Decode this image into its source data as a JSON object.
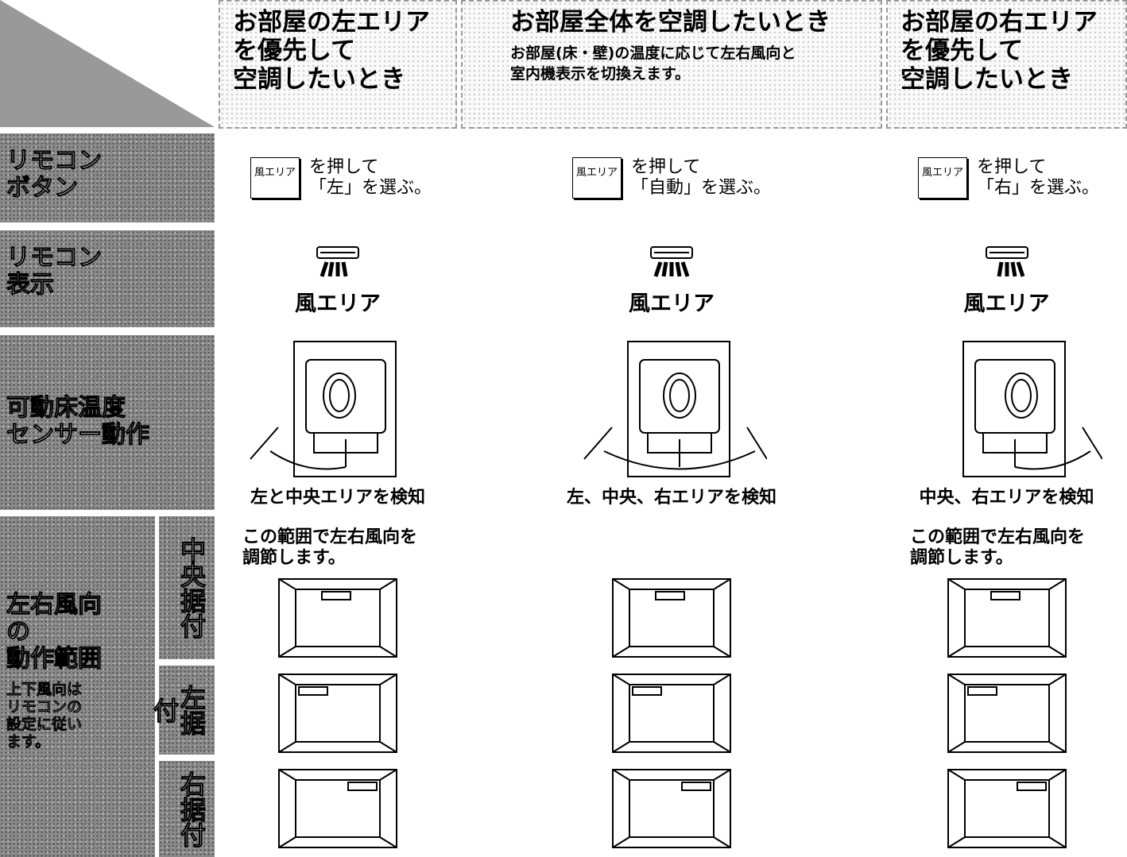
{
  "row_labels": {
    "remote_button": [
      "リモコン",
      "ボタン"
    ],
    "remote_display": [
      "リモコン",
      "表示"
    ],
    "sensor": [
      "可動床温度",
      "センサー動作"
    ],
    "airflow": [
      "左右風向",
      "の",
      "動作範囲"
    ],
    "airflow_note": [
      "上下風向は",
      "リモコンの",
      "設定に従い",
      "ます。"
    ],
    "installations": [
      "中央据付",
      "左据付",
      "右据付"
    ]
  },
  "columns": [
    {
      "title": [
        "お部屋の左エリア",
        "を優先して",
        "空調したいとき"
      ],
      "button": "風エリア",
      "instruction": [
        "を押して",
        "「左」を選ぶ。"
      ],
      "display": "風エリア",
      "sensor": "左と中央エリアを検知",
      "range_note": [
        "この範囲で左右風向を",
        "調節します。"
      ]
    },
    {
      "title": [
        "お部屋全体を空調したいとき"
      ],
      "subtitle": [
        "お部屋(床・壁)の温度に応じて左右風向と",
        "室内機表示を切換えます。"
      ],
      "button": "風エリア",
      "instruction": [
        "を押して",
        "「自動」を選ぶ。"
      ],
      "display": "風エリア",
      "sensor": "左、中央、右エリアを検知"
    },
    {
      "title": [
        "お部屋の右エリア",
        "を優先して",
        "空調したいとき"
      ],
      "button": "風エリア",
      "instruction": [
        "を押して",
        "「右」を選ぶ。"
      ],
      "display": "風エリア",
      "sensor": "中央、右エリアを検知",
      "range_note": [
        "この範囲で左右風向を",
        "調節します。"
      ]
    }
  ]
}
